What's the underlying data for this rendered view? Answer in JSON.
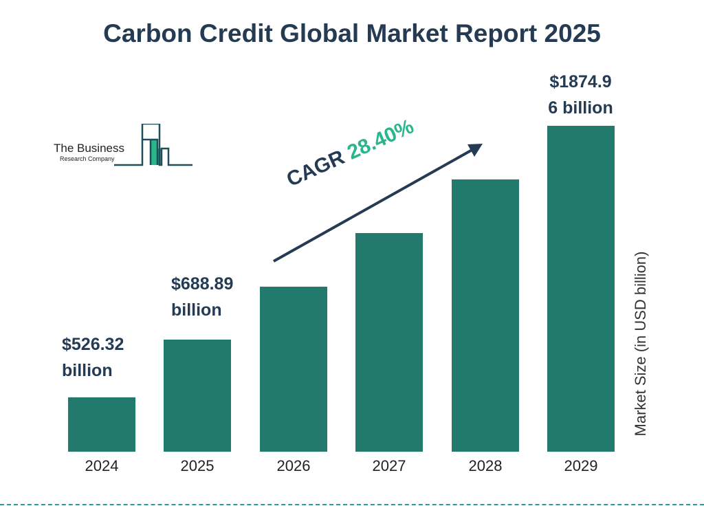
{
  "chart_data": {
    "type": "bar",
    "title": "Carbon Credit Global Market Report 2025",
    "categories": [
      "2024",
      "2025",
      "2026",
      "2027",
      "2028",
      "2029"
    ],
    "values": [
      526.32,
      688.89,
      884.5,
      1135.7,
      1458.2,
      1874.96
    ],
    "data_labels": {
      "0": [
        "$526.32",
        "billion"
      ],
      "1": [
        "$688.89",
        "billion"
      ],
      "5": [
        "$1874.9",
        "6 billion"
      ]
    },
    "ylabel": "Market Size (in USD billion)",
    "xlabel": "",
    "annotation": {
      "label": "CAGR",
      "value": "28.40%"
    },
    "colors": {
      "bar": "#217a6b",
      "title": "#243b53",
      "cagr": "#2bb58a"
    }
  },
  "logo": {
    "line1": "The Business",
    "line2": "Research Company"
  }
}
